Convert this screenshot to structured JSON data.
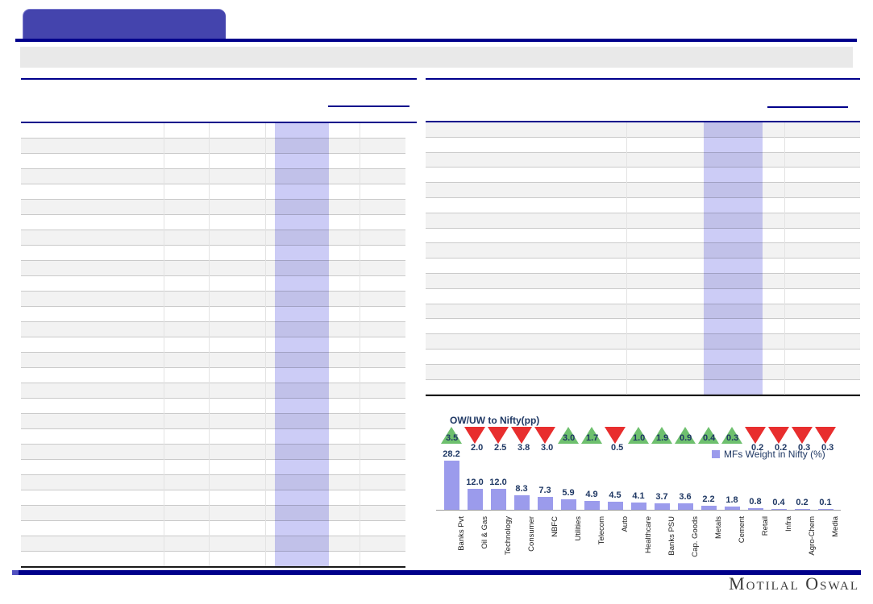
{
  "tables": {
    "left": {
      "row_count": 29,
      "has_highlight_column": true
    },
    "right": {
      "row_count": 18,
      "has_highlight_column": true
    }
  },
  "chart_data": {
    "type": "bar",
    "title": "OW/UW to Nifty(pp)",
    "legend": [
      {
        "label": "MFs Weight in Nifty (%)",
        "swatch_color": "#9B9BEC"
      }
    ],
    "legend_position": "top-right",
    "grid": false,
    "categories": [
      "Banks Pvt",
      "Oil & Gas",
      "Technology",
      "Consumer",
      "NBFC",
      "Utilities",
      "Telecom",
      "Auto",
      "Healthcare",
      "Banks PSU",
      "Cap. Goods",
      "Metals",
      "Cement",
      "Retail",
      "Infra",
      "Agro-Chem",
      "Media"
    ],
    "series": [
      {
        "name": "MFs Weight in Nifty (%)",
        "type": "bar",
        "color": "#9B9BEC",
        "values": [
          28.2,
          12.0,
          12.0,
          8.3,
          7.3,
          5.9,
          4.9,
          4.5,
          4.1,
          3.7,
          3.6,
          2.2,
          1.8,
          0.8,
          0.4,
          0.2,
          0.1
        ],
        "labels": [
          "28.2",
          "12.0",
          "12.0",
          "8.3",
          "7.3",
          "5.9",
          "4.9",
          "4.5",
          "4.1",
          "3.7",
          "3.6",
          "2.2",
          "1.8",
          "0.8",
          "0.4",
          "0.2",
          "0.1"
        ]
      },
      {
        "name": "OW/UW to Nifty(pp)",
        "type": "triangle-markers",
        "up_color": "#6EC06E",
        "down_color": "#E82E2E",
        "values": [
          3.5,
          -2.0,
          -2.5,
          -3.8,
          -3.0,
          3.0,
          1.7,
          -0.5,
          1.0,
          1.9,
          0.9,
          0.4,
          0.3,
          -0.2,
          -0.2,
          -0.3,
          -0.3
        ],
        "labels": [
          "3.5",
          "2.0",
          "2.5",
          "3.8",
          "3.0",
          "3.0",
          "1.7",
          "0.5",
          "1.0",
          "1.9",
          "0.9",
          "0.4",
          "0.3",
          "0.2",
          "0.2",
          "0.3",
          "0.3"
        ]
      }
    ],
    "value_label_color": "#1F3864"
  },
  "footer": {
    "logo_text": "Motilal Oswal"
  },
  "colors": {
    "accent_navy": "#00008B",
    "tab_blue": "#4444AD",
    "highlight_column": "#CCCCF6",
    "row_stripe": "#F2F2F2",
    "bar_purple": "#9B9BEC",
    "triangle_green": "#6EC06E",
    "triangle_red": "#E82E2E"
  }
}
